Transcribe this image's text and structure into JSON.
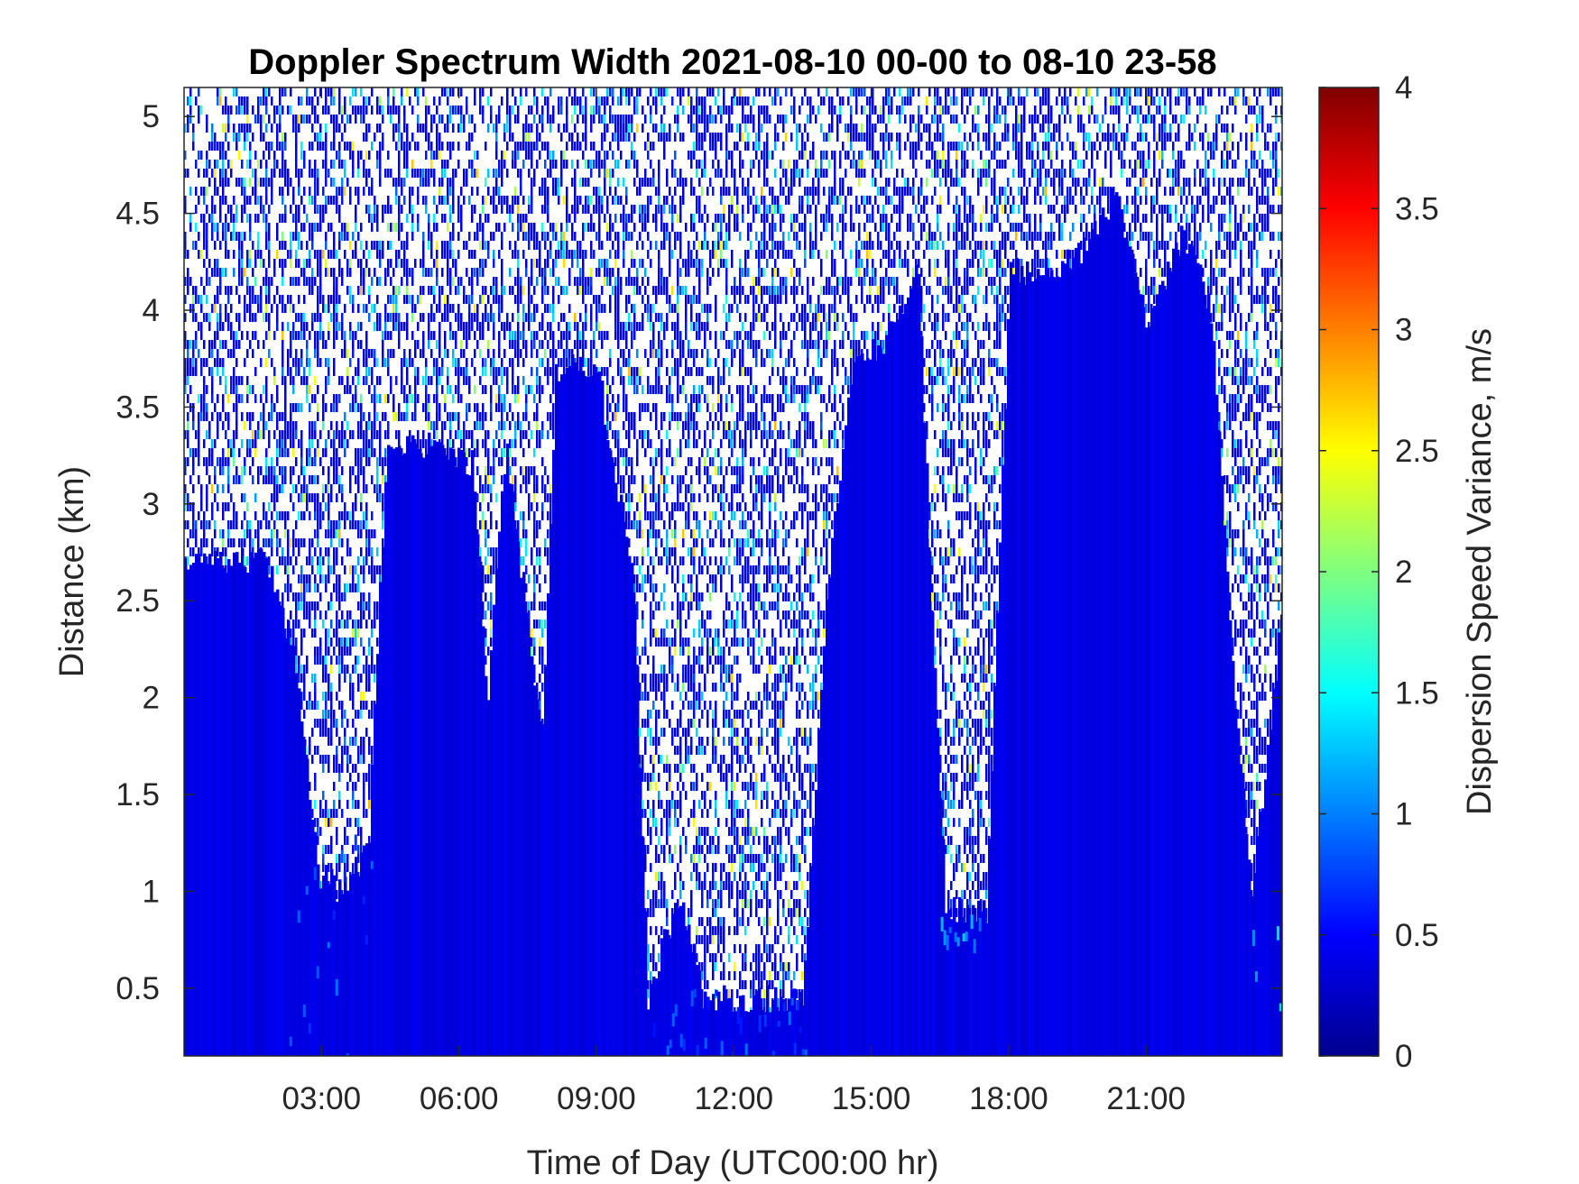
{
  "chart_data": {
    "type": "heatmap",
    "title": "Doppler Spectrum Width 2021-08-10 00-00 to 08-10 23-58",
    "xlabel": "Time of Day (UTC00:00 hr)",
    "ylabel": "Distance (km)",
    "colorbar_label": "Dispersion Speed Variance, m/s",
    "colormap": "jet",
    "x_unit": "hours",
    "xlim": [
      0,
      23.97
    ],
    "ylim": [
      0.15,
      5.15
    ],
    "clim": [
      0,
      4
    ],
    "x_ticks": [
      3,
      6,
      9,
      12,
      15,
      18,
      21
    ],
    "x_tick_labels": [
      "03:00",
      "06:00",
      "09:00",
      "12:00",
      "15:00",
      "18:00",
      "21:00"
    ],
    "y_ticks": [
      0.5,
      1,
      1.5,
      2,
      2.5,
      3,
      3.5,
      4,
      4.5,
      5
    ],
    "y_tick_labels": [
      "0.5",
      "1",
      "1.5",
      "2",
      "2.5",
      "3",
      "3.5",
      "4",
      "4.5",
      "5"
    ],
    "colorbar_ticks": [
      0,
      0.5,
      1,
      1.5,
      2,
      2.5,
      3,
      3.5,
      4
    ],
    "colorbar_tick_labels": [
      "0",
      "0.5",
      "1",
      "1.5",
      "2",
      "2.5",
      "3",
      "3.5",
      "4"
    ],
    "no_data_color": "#ffffff",
    "typical_value_in_signal": 0.4,
    "signal_top_km": [
      {
        "x": 0.0,
        "top": 2.7
      },
      {
        "x": 1.0,
        "top": 2.7
      },
      {
        "x": 1.8,
        "top": 2.7
      },
      {
        "x": 2.4,
        "top": 2.2
      },
      {
        "x": 2.9,
        "top": 1.1
      },
      {
        "x": 3.4,
        "top": 1.0
      },
      {
        "x": 4.0,
        "top": 1.2
      },
      {
        "x": 4.4,
        "top": 3.3
      },
      {
        "x": 5.5,
        "top": 3.3
      },
      {
        "x": 6.3,
        "top": 3.2
      },
      {
        "x": 6.6,
        "top": 2.0
      },
      {
        "x": 7.0,
        "top": 3.3
      },
      {
        "x": 7.8,
        "top": 1.8
      },
      {
        "x": 8.1,
        "top": 3.7
      },
      {
        "x": 9.0,
        "top": 3.7
      },
      {
        "x": 9.8,
        "top": 2.6
      },
      {
        "x": 10.1,
        "top": 0.45
      },
      {
        "x": 10.8,
        "top": 1.0
      },
      {
        "x": 11.3,
        "top": 0.45
      },
      {
        "x": 13.5,
        "top": 0.45
      },
      {
        "x": 14.0,
        "top": 2.5
      },
      {
        "x": 14.6,
        "top": 3.8
      },
      {
        "x": 15.2,
        "top": 3.8
      },
      {
        "x": 16.0,
        "top": 4.2
      },
      {
        "x": 16.6,
        "top": 0.9
      },
      {
        "x": 17.5,
        "top": 0.9
      },
      {
        "x": 18.0,
        "top": 4.2
      },
      {
        "x": 19.0,
        "top": 4.2
      },
      {
        "x": 19.6,
        "top": 4.3
      },
      {
        "x": 20.3,
        "top": 4.6
      },
      {
        "x": 21.0,
        "top": 3.9
      },
      {
        "x": 21.8,
        "top": 4.4
      },
      {
        "x": 22.4,
        "top": 4.0
      },
      {
        "x": 22.9,
        "top": 2.0
      },
      {
        "x": 23.3,
        "top": 1.0
      },
      {
        "x": 23.97,
        "top": 2.5
      }
    ],
    "highlights": [
      {
        "x0": 2.3,
        "x1": 4.3,
        "y0": 0.15,
        "y1": 1.3,
        "value": 0.8
      },
      {
        "x0": 16.4,
        "y1": 0.95,
        "x1": 17.4,
        "y0": 0.75,
        "value": 1.1
      },
      {
        "x0": 10.0,
        "x1": 13.6,
        "y0": 0.15,
        "y1": 0.5,
        "value": 0.75
      },
      {
        "x0": 23.2,
        "x1": 23.97,
        "y0": 0.15,
        "y1": 1.0,
        "value": 1.2
      }
    ]
  }
}
